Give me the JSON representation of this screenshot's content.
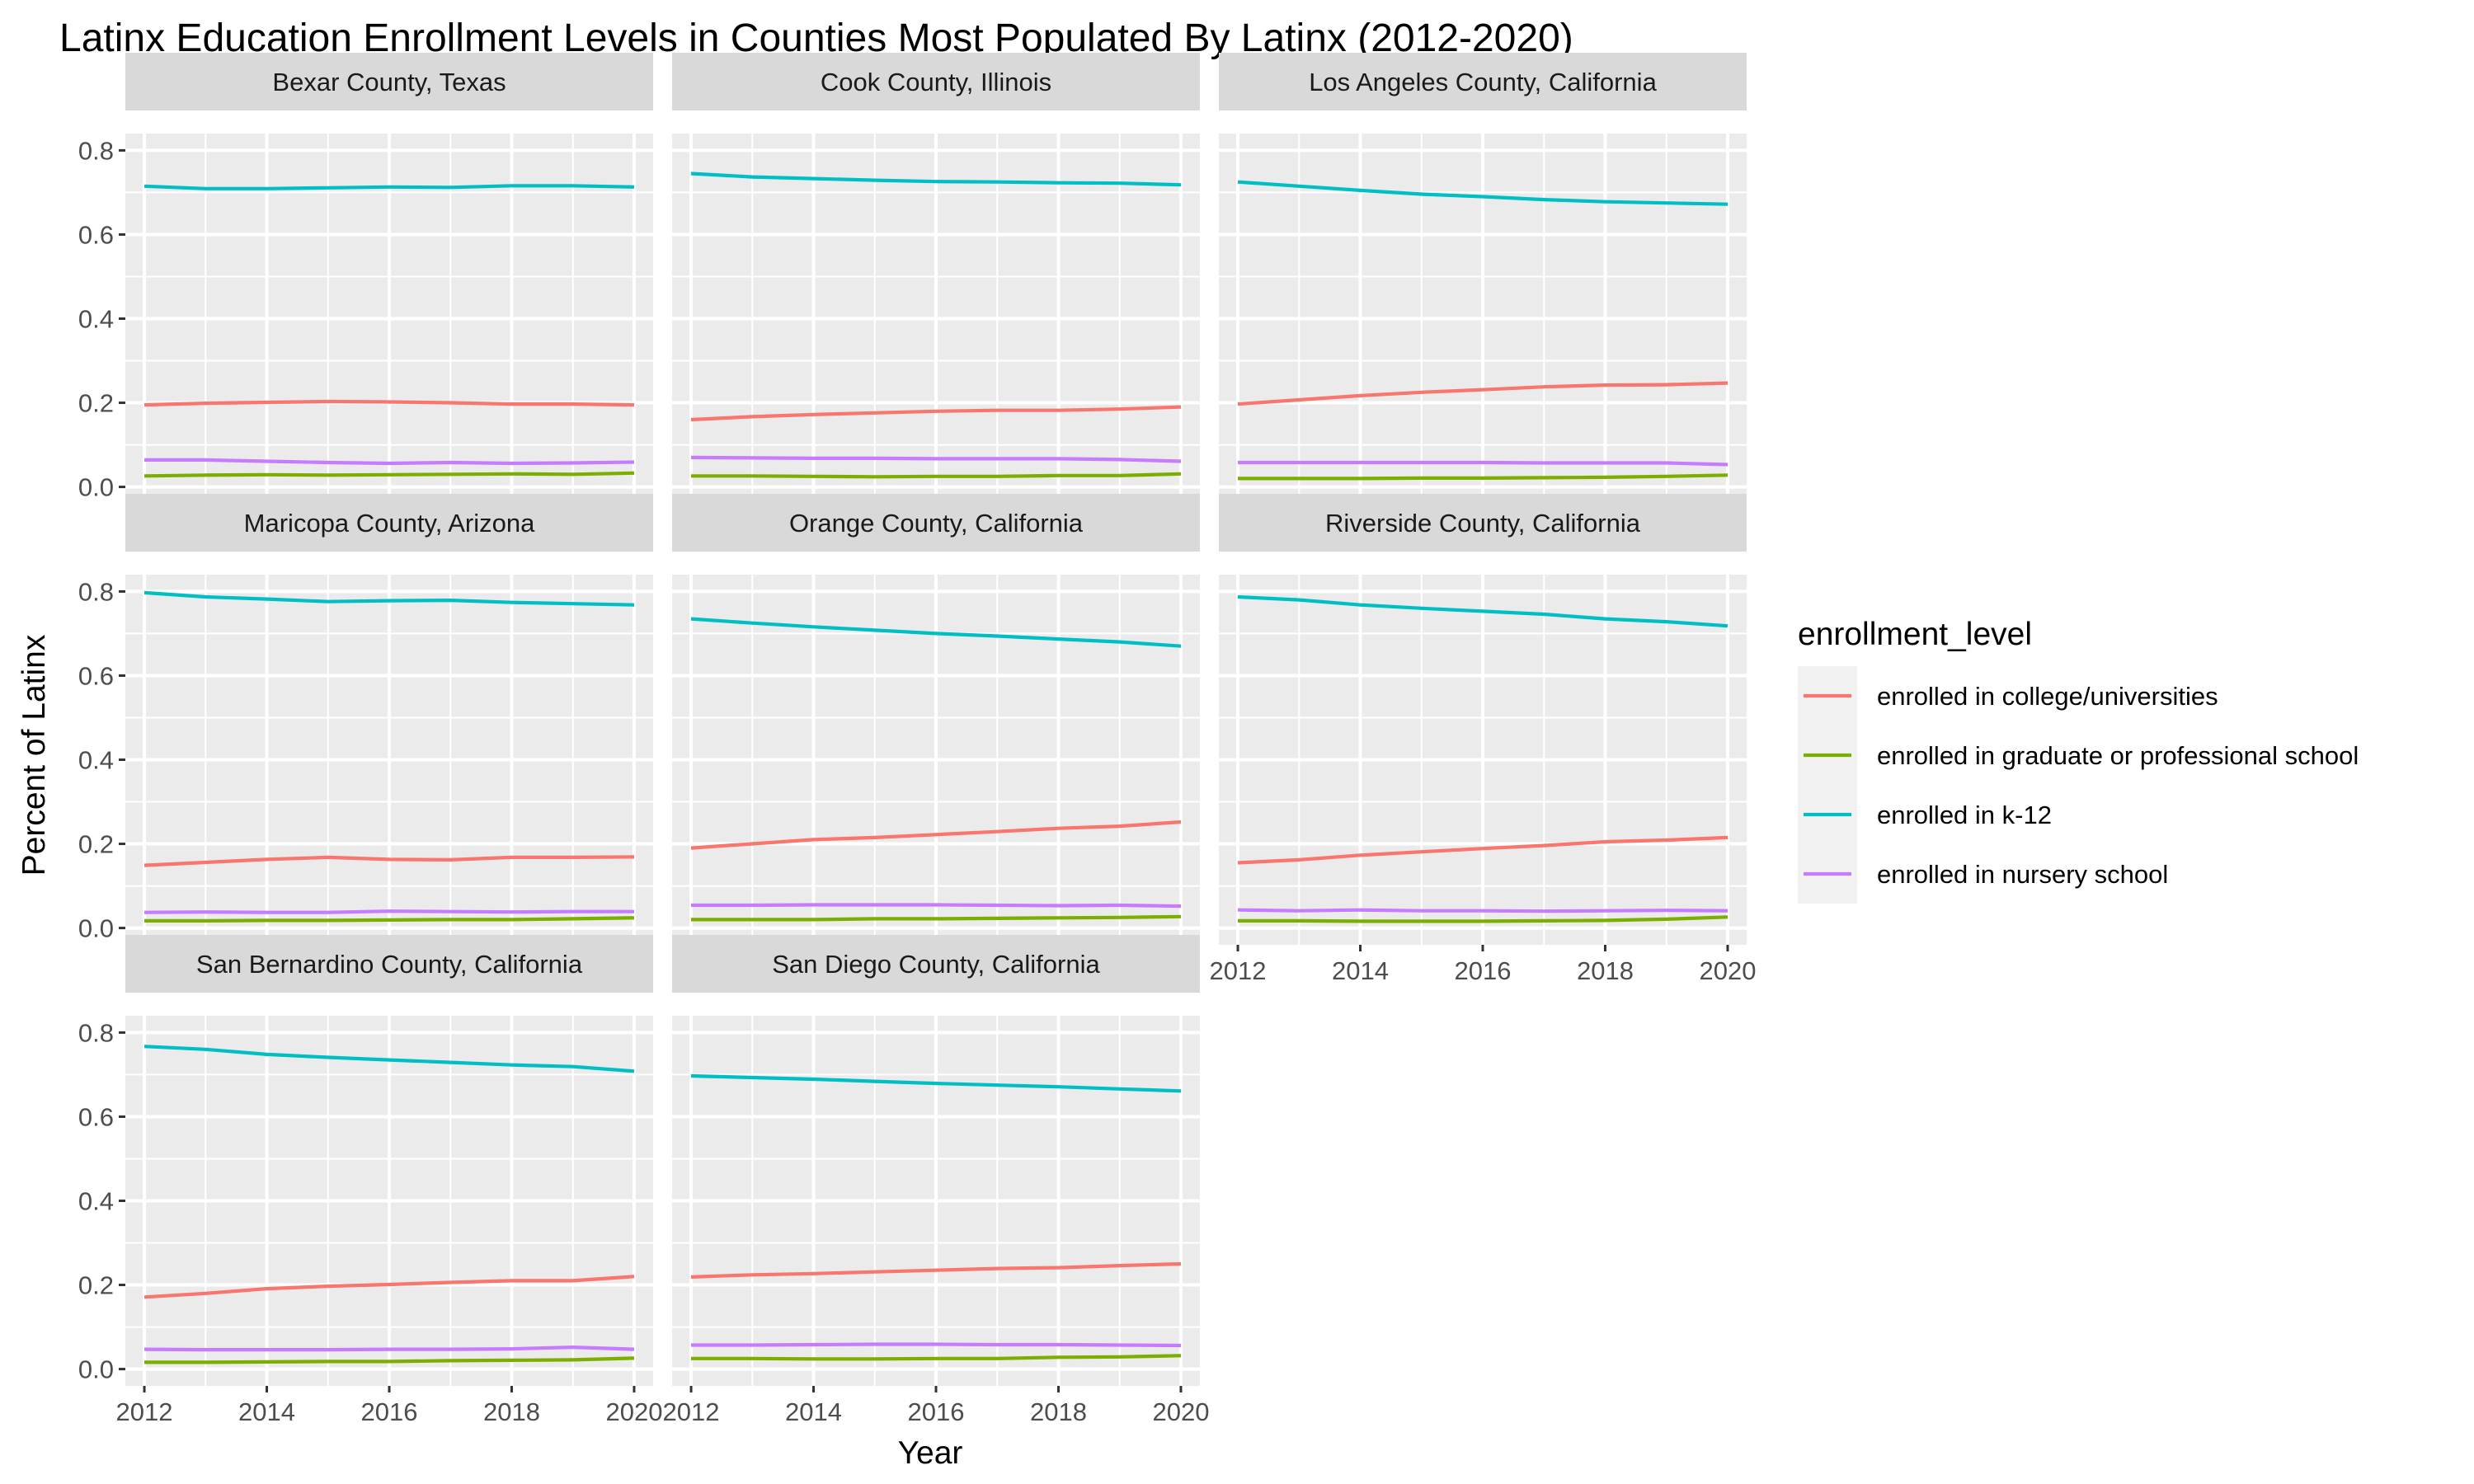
{
  "chart_data": {
    "type": "line",
    "title": "Latinx Education Enrollment Levels in Counties Most Populated By Latinx (2012-2020)",
    "xlabel": "Year",
    "ylabel": "Percent of Latinx",
    "xlim": [
      2012,
      2020
    ],
    "ylim": [
      0,
      0.8
    ],
    "x_ticks": [
      "2012",
      "2014",
      "2016",
      "2018",
      "2020"
    ],
    "y_ticks": [
      "0.0",
      "0.2",
      "0.4",
      "0.6",
      "0.8"
    ],
    "grid": true,
    "legend": {
      "title": "enrollment_level",
      "position": "right",
      "entries": [
        {
          "label": "enrolled in college/universities",
          "color": "#F8766D"
        },
        {
          "label": "enrolled in graduate or professional school",
          "color": "#7CAE00"
        },
        {
          "label": "enrolled in k-12",
          "color": "#00BFC4"
        },
        {
          "label": "enrolled in nursery school",
          "color": "#C77CFF"
        }
      ]
    },
    "x": [
      2012,
      2013,
      2014,
      2015,
      2016,
      2017,
      2018,
      2019,
      2020
    ],
    "facets": [
      {
        "name": "Bexar County, Texas",
        "series": [
          {
            "values": [
              0.195,
              0.199,
              0.201,
              0.203,
              0.202,
              0.2,
              0.197,
              0.197,
              0.195
            ]
          },
          {
            "values": [
              0.026,
              0.028,
              0.029,
              0.028,
              0.029,
              0.03,
              0.031,
              0.03,
              0.033
            ]
          },
          {
            "values": [
              0.715,
              0.709,
              0.709,
              0.711,
              0.713,
              0.712,
              0.716,
              0.716,
              0.713
            ]
          },
          {
            "values": [
              0.064,
              0.064,
              0.061,
              0.058,
              0.056,
              0.058,
              0.056,
              0.057,
              0.059
            ]
          }
        ]
      },
      {
        "name": "Cook County, Illinois",
        "series": [
          {
            "values": [
              0.16,
              0.167,
              0.172,
              0.176,
              0.18,
              0.182,
              0.182,
              0.185,
              0.19
            ]
          },
          {
            "values": [
              0.026,
              0.026,
              0.025,
              0.024,
              0.025,
              0.025,
              0.027,
              0.027,
              0.031
            ]
          },
          {
            "values": [
              0.745,
              0.737,
              0.733,
              0.729,
              0.726,
              0.725,
              0.723,
              0.722,
              0.718
            ]
          },
          {
            "values": [
              0.07,
              0.069,
              0.068,
              0.068,
              0.067,
              0.067,
              0.067,
              0.065,
              0.061
            ]
          }
        ]
      },
      {
        "name": "Los Angeles County, California",
        "series": [
          {
            "values": [
              0.197,
              0.207,
              0.217,
              0.225,
              0.231,
              0.238,
              0.242,
              0.243,
              0.247
            ]
          },
          {
            "values": [
              0.02,
              0.02,
              0.02,
              0.021,
              0.021,
              0.022,
              0.023,
              0.025,
              0.028
            ]
          },
          {
            "values": [
              0.725,
              0.715,
              0.705,
              0.696,
              0.69,
              0.683,
              0.678,
              0.675,
              0.672
            ]
          },
          {
            "values": [
              0.058,
              0.058,
              0.058,
              0.058,
              0.058,
              0.057,
              0.057,
              0.057,
              0.053
            ]
          }
        ]
      },
      {
        "name": "Maricopa County, Arizona",
        "series": [
          {
            "values": [
              0.149,
              0.156,
              0.163,
              0.168,
              0.163,
              0.162,
              0.168,
              0.168,
              0.169
            ]
          },
          {
            "values": [
              0.017,
              0.017,
              0.018,
              0.018,
              0.019,
              0.02,
              0.02,
              0.022,
              0.024
            ]
          },
          {
            "values": [
              0.797,
              0.787,
              0.782,
              0.776,
              0.778,
              0.779,
              0.774,
              0.771,
              0.768
            ]
          },
          {
            "values": [
              0.037,
              0.038,
              0.037,
              0.037,
              0.04,
              0.039,
              0.038,
              0.039,
              0.039
            ]
          }
        ]
      },
      {
        "name": "Orange County, California",
        "series": [
          {
            "values": [
              0.19,
              0.2,
              0.21,
              0.215,
              0.222,
              0.229,
              0.237,
              0.242,
              0.252
            ]
          },
          {
            "values": [
              0.02,
              0.02,
              0.02,
              0.022,
              0.022,
              0.023,
              0.024,
              0.025,
              0.027
            ]
          },
          {
            "values": [
              0.735,
              0.725,
              0.716,
              0.708,
              0.7,
              0.694,
              0.687,
              0.68,
              0.67
            ]
          },
          {
            "values": [
              0.054,
              0.054,
              0.055,
              0.055,
              0.055,
              0.054,
              0.053,
              0.054,
              0.052
            ]
          }
        ]
      },
      {
        "name": "Riverside County, California",
        "series": [
          {
            "values": [
              0.155,
              0.162,
              0.173,
              0.181,
              0.189,
              0.196,
              0.205,
              0.209,
              0.215
            ]
          },
          {
            "values": [
              0.017,
              0.017,
              0.016,
              0.016,
              0.016,
              0.017,
              0.018,
              0.021,
              0.026
            ]
          },
          {
            "values": [
              0.787,
              0.78,
              0.768,
              0.76,
              0.753,
              0.746,
              0.735,
              0.728,
              0.718
            ]
          },
          {
            "values": [
              0.043,
              0.041,
              0.043,
              0.041,
              0.041,
              0.04,
              0.041,
              0.042,
              0.041
            ]
          }
        ]
      },
      {
        "name": "San Bernardino County, California",
        "series": [
          {
            "values": [
              0.171,
              0.18,
              0.191,
              0.197,
              0.201,
              0.206,
              0.21,
              0.21,
              0.22
            ]
          },
          {
            "values": [
              0.016,
              0.016,
              0.017,
              0.018,
              0.018,
              0.02,
              0.021,
              0.022,
              0.026
            ]
          },
          {
            "values": [
              0.767,
              0.76,
              0.748,
              0.741,
              0.735,
              0.729,
              0.723,
              0.719,
              0.708
            ]
          },
          {
            "values": [
              0.047,
              0.046,
              0.046,
              0.046,
              0.047,
              0.047,
              0.048,
              0.052,
              0.047
            ]
          }
        ]
      },
      {
        "name": "San Diego County, California",
        "series": [
          {
            "values": [
              0.219,
              0.224,
              0.227,
              0.231,
              0.235,
              0.239,
              0.241,
              0.246,
              0.25
            ]
          },
          {
            "values": [
              0.025,
              0.025,
              0.024,
              0.024,
              0.025,
              0.025,
              0.028,
              0.029,
              0.032
            ]
          },
          {
            "values": [
              0.697,
              0.693,
              0.689,
              0.684,
              0.679,
              0.675,
              0.671,
              0.666,
              0.661
            ]
          },
          {
            "values": [
              0.057,
              0.057,
              0.058,
              0.059,
              0.059,
              0.058,
              0.058,
              0.057,
              0.056
            ]
          }
        ]
      }
    ]
  }
}
